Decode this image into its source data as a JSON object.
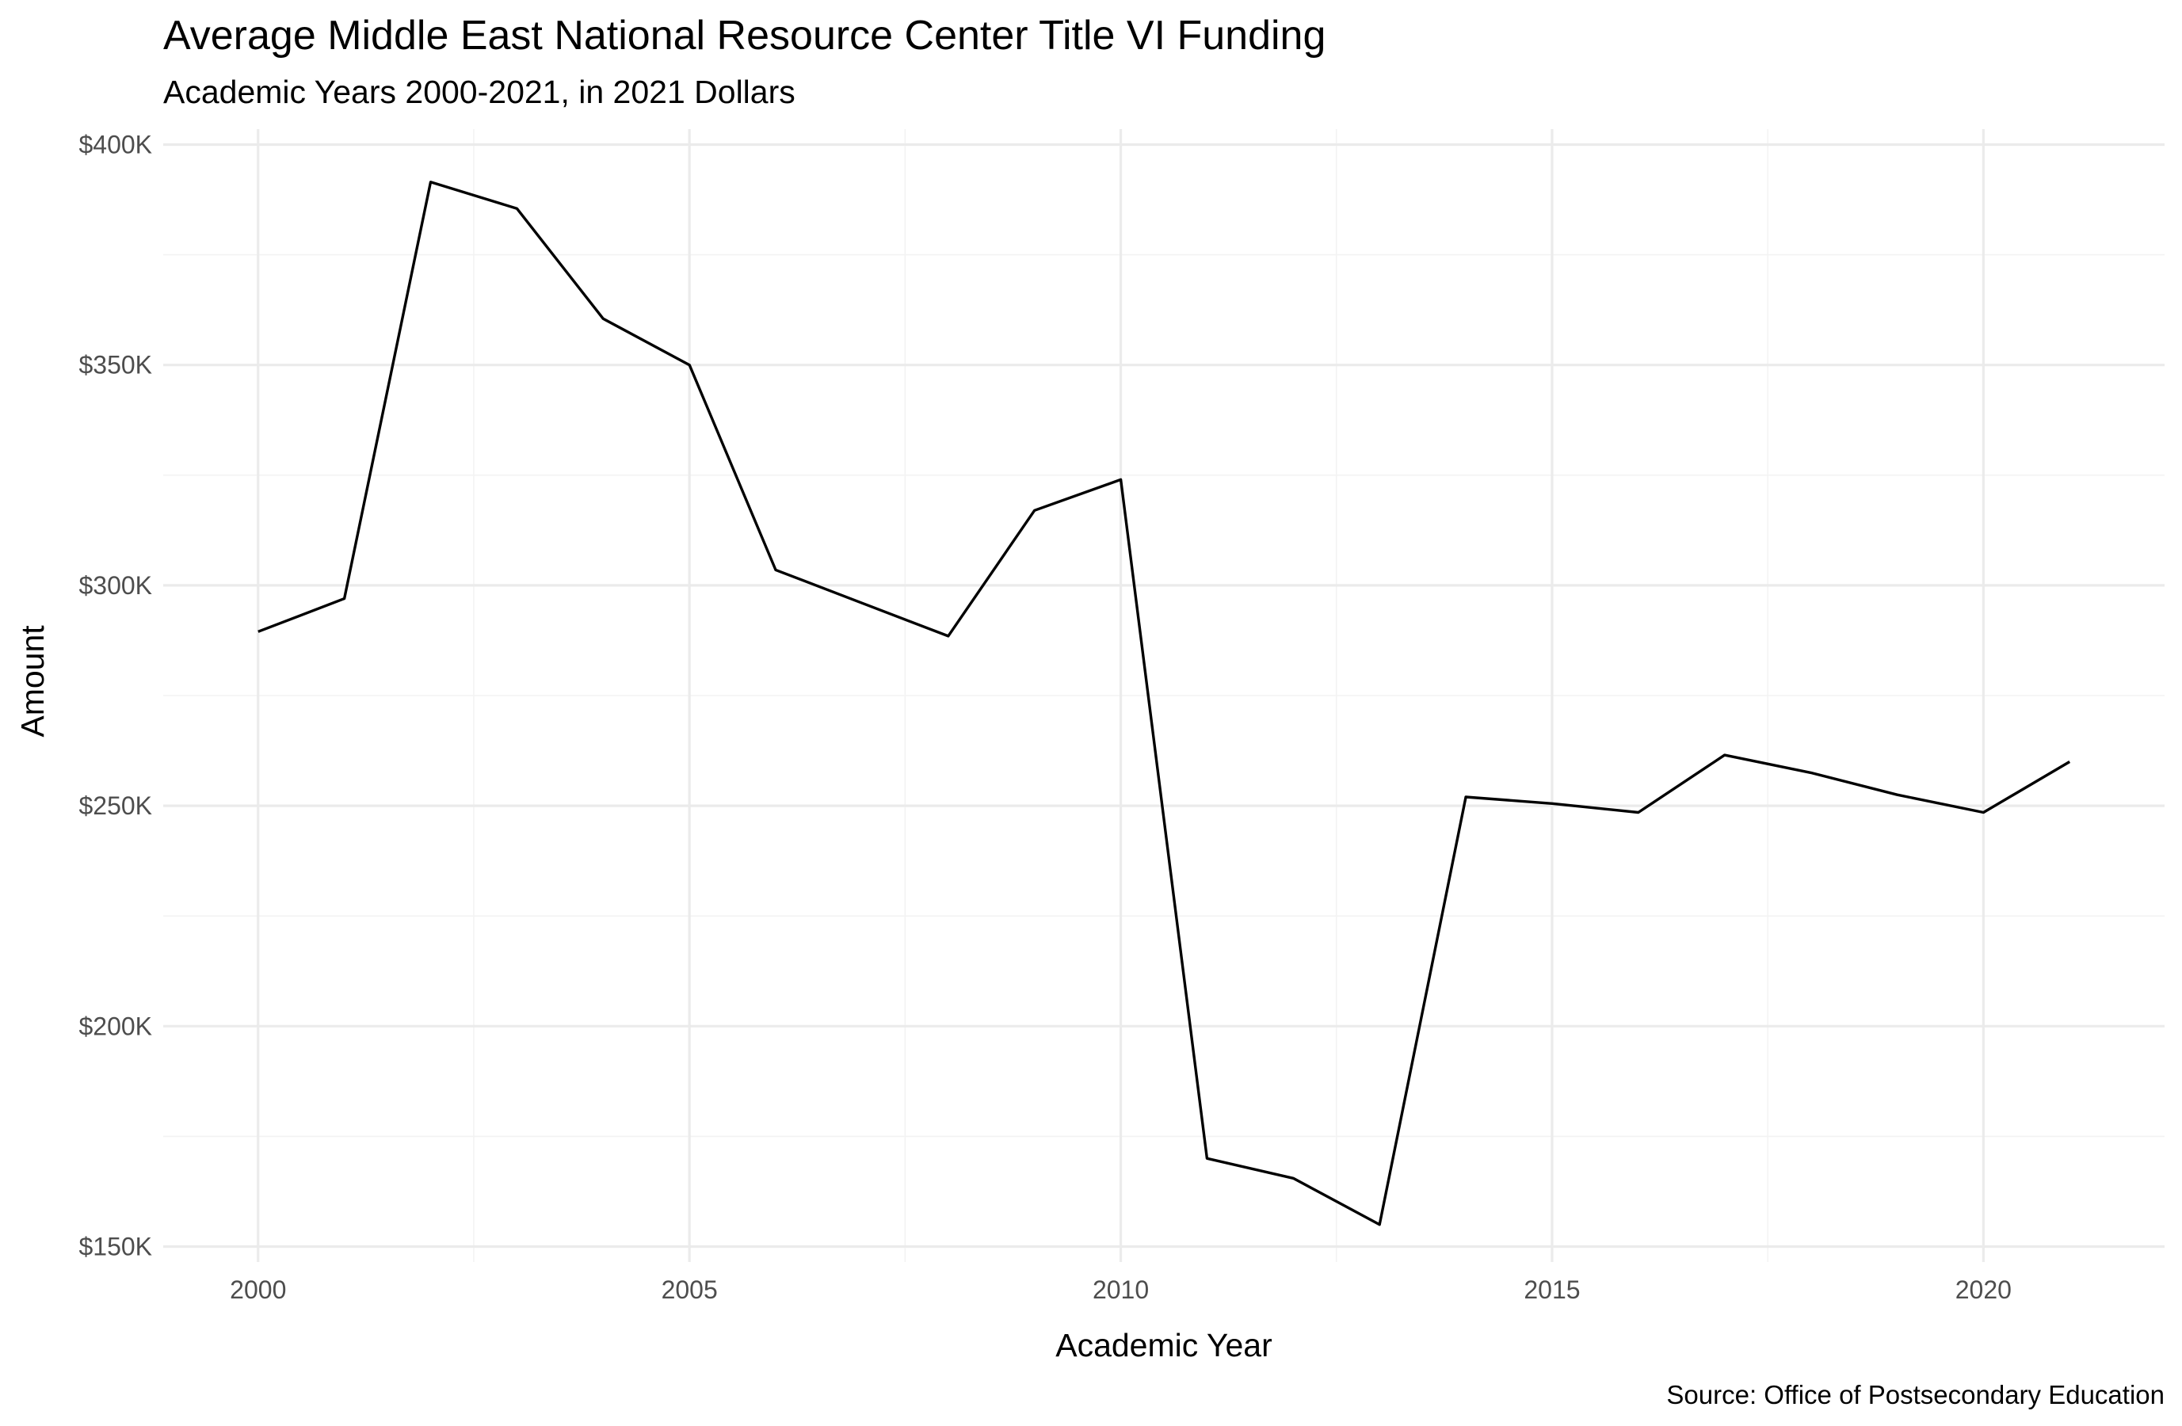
{
  "chart_data": {
    "type": "line",
    "title": "Average Middle East National Resource Center Title VI Funding",
    "subtitle": "Academic Years 2000-2021, in 2021 Dollars",
    "xlabel": "Academic Year",
    "ylabel": "Amount",
    "caption": "Source: Office of Postsecondary Education",
    "xlim": [
      1998.9,
      2022.1
    ],
    "ylim": [
      146500,
      403500
    ],
    "x_ticks": [
      2000,
      2005,
      2010,
      2015,
      2020
    ],
    "x_tick_labels": [
      "2000",
      "2005",
      "2010",
      "2015",
      "2020"
    ],
    "y_ticks": [
      150000,
      200000,
      250000,
      300000,
      350000,
      400000
    ],
    "y_tick_labels": [
      "$150K",
      "$200K",
      "$250K",
      "$300K",
      "$350K",
      "$400K"
    ],
    "grid": true,
    "legend": "none",
    "series": [
      {
        "color": "#000000",
        "x": [
          2000,
          2001,
          2002,
          2003,
          2004,
          2005,
          2006,
          2007,
          2008,
          2009,
          2010,
          2011,
          2012,
          2013,
          2014,
          2015,
          2016,
          2017,
          2018,
          2019,
          2020,
          2021
        ],
        "y": [
          289500,
          297000,
          391500,
          385500,
          360500,
          350000,
          303500,
          296000,
          288500,
          317000,
          324000,
          170000,
          165500,
          155000,
          252000,
          250500,
          248500,
          261500,
          257500,
          252500,
          248500,
          260000
        ]
      }
    ]
  }
}
